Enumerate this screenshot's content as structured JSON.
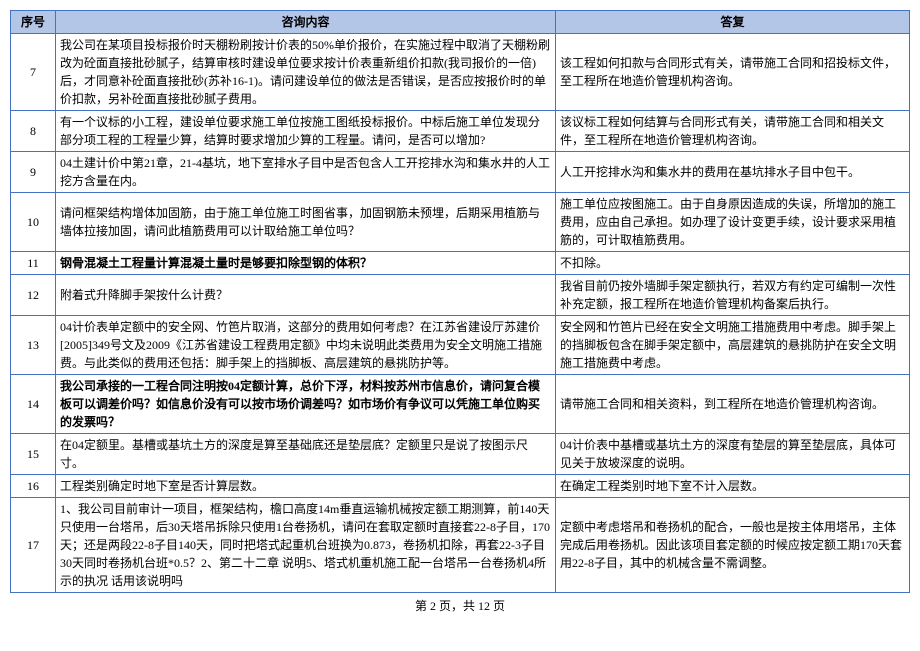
{
  "header": {
    "col_num": "序号",
    "col_q": "咨询内容",
    "col_a": "答复"
  },
  "rows": [
    {
      "num": "7",
      "q": "我公司在某项目投标报价时天棚粉刷按计价表的50%单价报价，在实施过程中取消了天棚粉刷改为砼面直接批砂腻子，结算审核时建设单位要求按计价表重新组价扣款(我司报价的一倍)后，才同意补砼面直接批砂(苏补16-1)。请问建设单位的做法是否错误，是否应按报价时的单价扣款，另补砼面直接批砂腻子费用。",
      "a": "该工程如何扣款与合同形式有关，请带施工合同和招投标文件，至工程所在地造价管理机构咨询。",
      "bold": false
    },
    {
      "num": "8",
      "q": "有一个议标的小工程，建设单位要求施工单位按施工图纸投标报价。中标后施工单位发现分部分项工程的工程量少算，结算时要求增加少算的工程量。请问，是否可以增加?",
      "a": "该议标工程如何结算与合同形式有关，请带施工合同和相关文件，至工程所在地造价管理机构咨询。",
      "bold": false
    },
    {
      "num": "9",
      "q": "04土建计价中第21章，21-4基坑，地下室排水子目中是否包含人工开挖排水沟和集水井的人工挖方含量在内。",
      "a": "人工开挖排水沟和集水井的费用在基坑排水子目中包干。",
      "bold": false
    },
    {
      "num": "10",
      "q": "请问框架结构增体加固筋，由于施工单位施工时图省事，加固钢筋未预埋，后期采用植筋与墙体拉接加固，请问此植筋费用可以计取给施工单位吗？",
      "a": "施工单位应按图施工。由于自身原因造成的失误，所增加的施工费用，应由自己承担。如办理了设计变更手续，设计要求采用植筋的，可计取植筋费用。",
      "bold": false
    },
    {
      "num": "11",
      "q": "钢骨混凝土工程量计算混凝土量时是够要扣除型钢的体积？",
      "a": "不扣除。",
      "bold": true
    },
    {
      "num": "12",
      "q": "附着式升降脚手架按什么计费？",
      "a": "我省目前仍按外墙脚手架定额执行，若双方有约定可编制一次性补充定额，报工程所在地造价管理机构备案后执行。",
      "bold": false
    },
    {
      "num": "13",
      "q": "04计价表单定额中的安全网、竹笆片取消，这部分的费用如何考虑？在江苏省建设厅苏建价[2005]349号文及2009《江苏省建设工程费用定额》中均未说明此类费用为安全文明施工措施费。与此类似的费用还包括：脚手架上的挡脚板、高层建筑的悬挑防护等。",
      "a": "安全网和竹笆片已经在安全文明施工措施费用中考虑。脚手架上的挡脚板包含在脚手架定额中，高层建筑的悬挑防护在安全文明施工措施费中考虑。",
      "bold": false
    },
    {
      "num": "14",
      "q": "我公司承接的一工程合同注明按04定额计算，总价下浮，材料按苏州市信息价，请问复合模板可以调差价吗？如信息价没有可以按市场价调差吗？如市场价有争议可以凭施工单位购买的发票吗？",
      "a": "请带施工合同和相关资料，到工程所在地造价管理机构咨询。",
      "bold": true
    },
    {
      "num": "15",
      "q": "在04定额里。基槽或基坑土方的深度是算至基础底还是垫层底？定额里只是说了按图示尺寸。",
      "a": "04计价表中基槽或基坑土方的深度有垫层的算至垫层底，具体可见关于放坡深度的说明。",
      "bold": false
    },
    {
      "num": "16",
      "q": "工程类别确定时地下室是否计算层数。",
      "a": "在确定工程类别时地下室不计入层数。",
      "bold": false
    },
    {
      "num": "17",
      "q": "1、我公司目前审计一项目，框架结构，檐口高度14m垂直运输机械按定额工期测算，前140天只使用一台塔吊，后30天塔吊拆除只使用1台卷扬机，请问在套取定额时直接套22-8子目，170天；还是两段22-8子目140天，同时把塔式起重机台班换为0.873，卷扬机扣除，再套22-3子目30天同时卷扬机台班*0.5？2、第二十二章 说明5、塔式机重机施工配一台塔吊一台卷扬机4所示的执况 话用该说明吗",
      "a": "定额中考虑塔吊和卷扬机的配合，一般也是按主体用塔吊，主体完成后用卷扬机。因此该项目套定额的时候应按定额工期170天套用22-8子目，其中的机械含量不需调整。",
      "bold": false
    }
  ],
  "footer": "第 2 页，共 12 页"
}
